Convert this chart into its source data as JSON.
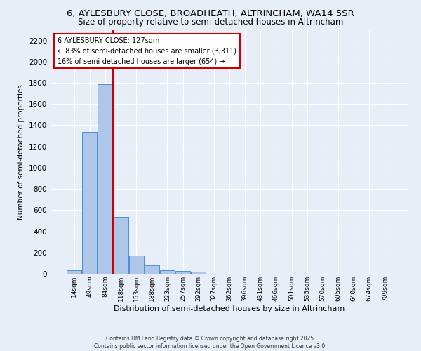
{
  "title_line1": "6, AYLESBURY CLOSE, BROADHEATH, ALTRINCHAM, WA14 5SR",
  "title_line2": "Size of property relative to semi-detached houses in Altrincham",
  "xlabel": "Distribution of semi-detached houses by size in Altrincham",
  "ylabel": "Number of semi-detached properties",
  "footer": "Contains HM Land Registry data © Crown copyright and database right 2025.\nContains public sector information licensed under the Open Government Licence v3.0.",
  "bin_labels": [
    "14sqm",
    "49sqm",
    "84sqm",
    "118sqm",
    "153sqm",
    "188sqm",
    "223sqm",
    "257sqm",
    "292sqm",
    "327sqm",
    "362sqm",
    "396sqm",
    "431sqm",
    "466sqm",
    "501sqm",
    "535sqm",
    "570sqm",
    "605sqm",
    "640sqm",
    "674sqm",
    "709sqm"
  ],
  "bar_values": [
    30,
    1340,
    1790,
    535,
    175,
    80,
    35,
    27,
    22,
    0,
    0,
    0,
    0,
    0,
    0,
    0,
    0,
    0,
    0,
    0,
    0
  ],
  "bar_color": "#aec6e8",
  "bar_edge_color": "#4a90d9",
  "vline_x": 2.5,
  "vline_color": "#cc0000",
  "annotation_title": "6 AYLESBURY CLOSE: 127sqm",
  "annotation_line1": "← 83% of semi-detached houses are smaller (3,311)",
  "annotation_line2": "16% of semi-detached houses are larger (654) →",
  "annotation_box_color": "#cc0000",
  "ylim": [
    0,
    2300
  ],
  "yticks": [
    0,
    200,
    400,
    600,
    800,
    1000,
    1200,
    1400,
    1600,
    1800,
    2000,
    2200
  ],
  "bg_color": "#e8eef8",
  "grid_color": "#ffffff",
  "title_fontsize": 9.5,
  "subtitle_fontsize": 8.5
}
